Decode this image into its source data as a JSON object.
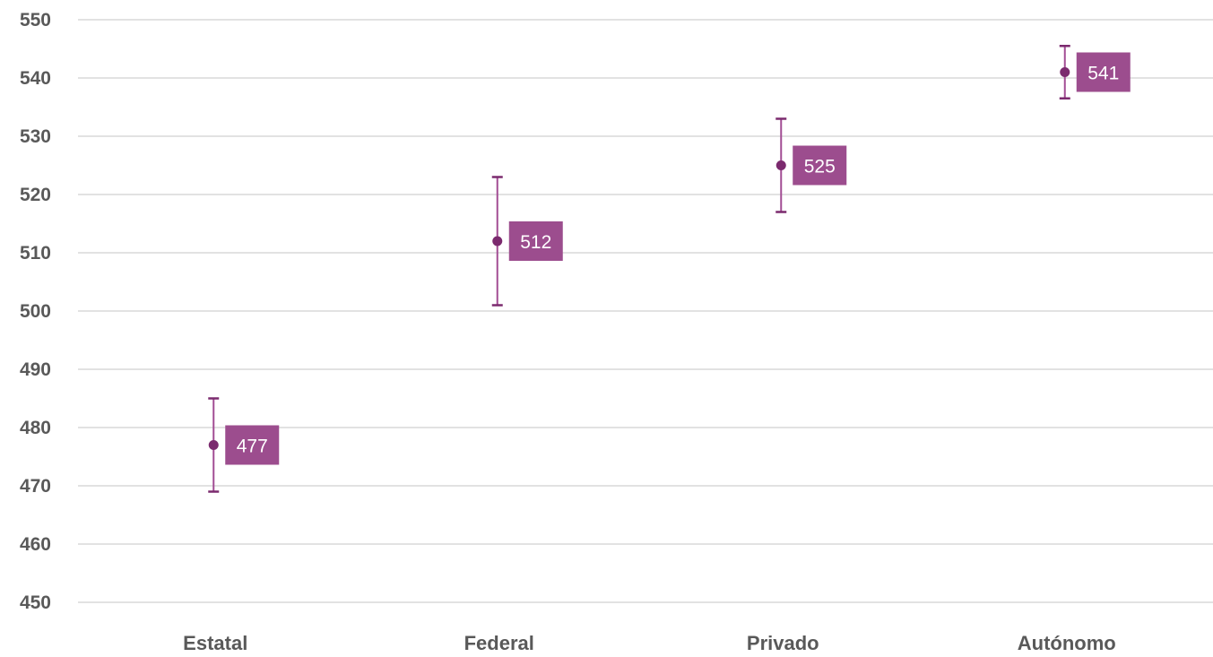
{
  "chart_data": {
    "type": "scatter",
    "categories": [
      "Estatal",
      "Federal",
      "Privado",
      "Autónomo"
    ],
    "series": [
      {
        "values": [
          477,
          512,
          525,
          541
        ],
        "error_low": [
          469,
          501,
          517,
          536.5
        ],
        "error_high": [
          485,
          523,
          533,
          545.5
        ],
        "data_labels": [
          "477",
          "512",
          "525",
          "541"
        ]
      }
    ],
    "ylim": [
      450,
      550
    ],
    "yticks": [
      450,
      460,
      470,
      480,
      490,
      500,
      510,
      520,
      530,
      540,
      550
    ],
    "ytick_labels": [
      "450",
      "460",
      "470",
      "480",
      "490",
      "500",
      "510",
      "520",
      "530",
      "540",
      "550"
    ],
    "grid": true,
    "title": "",
    "xlabel": "",
    "ylabel": "",
    "colors": {
      "marker": "#7b2a6e",
      "error_bar": "#a24d94",
      "label_bg": "#9c4d8e",
      "gridline": "#d9d9d9",
      "tick_text": "#595959"
    }
  }
}
